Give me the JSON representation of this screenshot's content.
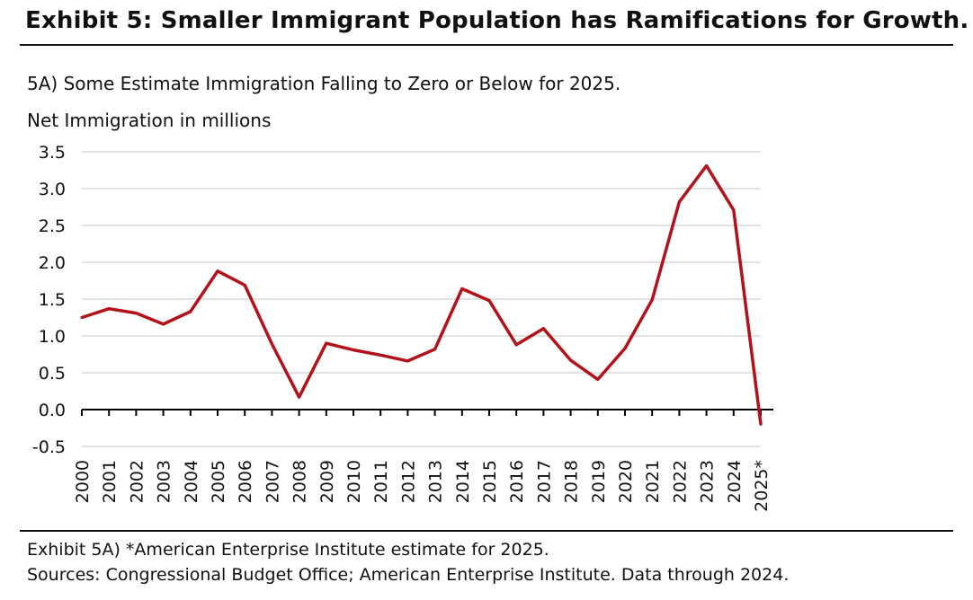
{
  "header": {
    "title": "Exhibit 5: Smaller Immigrant Population has Ramifications for Growth."
  },
  "chart_data": {
    "type": "line",
    "title": "5A) Some Estimate Immigration Falling to Zero or Below for 2025.",
    "ylabel": "Net Immigration in millions",
    "xlabel": "",
    "ylim": [
      -0.5,
      3.5
    ],
    "yticks": [
      "3.5",
      "3.0",
      "2.5",
      "2.0",
      "1.5",
      "1.0",
      "0.5",
      "0.0",
      "-0.5"
    ],
    "categories": [
      "2000",
      "2001",
      "2002",
      "2003",
      "2004",
      "2005",
      "2006",
      "2007",
      "2008",
      "2009",
      "2010",
      "2011",
      "2012",
      "2013",
      "2014",
      "2015",
      "2016",
      "2017",
      "2018",
      "2019",
      "2020",
      "2021",
      "2022",
      "2023",
      "2024",
      "2025*"
    ],
    "series": [
      {
        "values": [
          1.25,
          1.37,
          1.31,
          1.16,
          1.33,
          1.88,
          1.69,
          0.89,
          0.17,
          0.9,
          0.81,
          0.74,
          0.66,
          0.82,
          1.64,
          1.48,
          0.88,
          1.1,
          0.67,
          0.41,
          0.83,
          1.49,
          2.82,
          3.31,
          2.71,
          -0.2
        ]
      }
    ],
    "grid": true,
    "colors": {
      "line": "#b3121b",
      "grid": "#d9d9d9",
      "axis": "#000000"
    }
  },
  "footer": {
    "note": "Exhibit 5A) *American Enterprise Institute estimate for 2025.",
    "sources": "Sources: Congressional Budget Office; American Enterprise Institute. Data through 2024."
  }
}
